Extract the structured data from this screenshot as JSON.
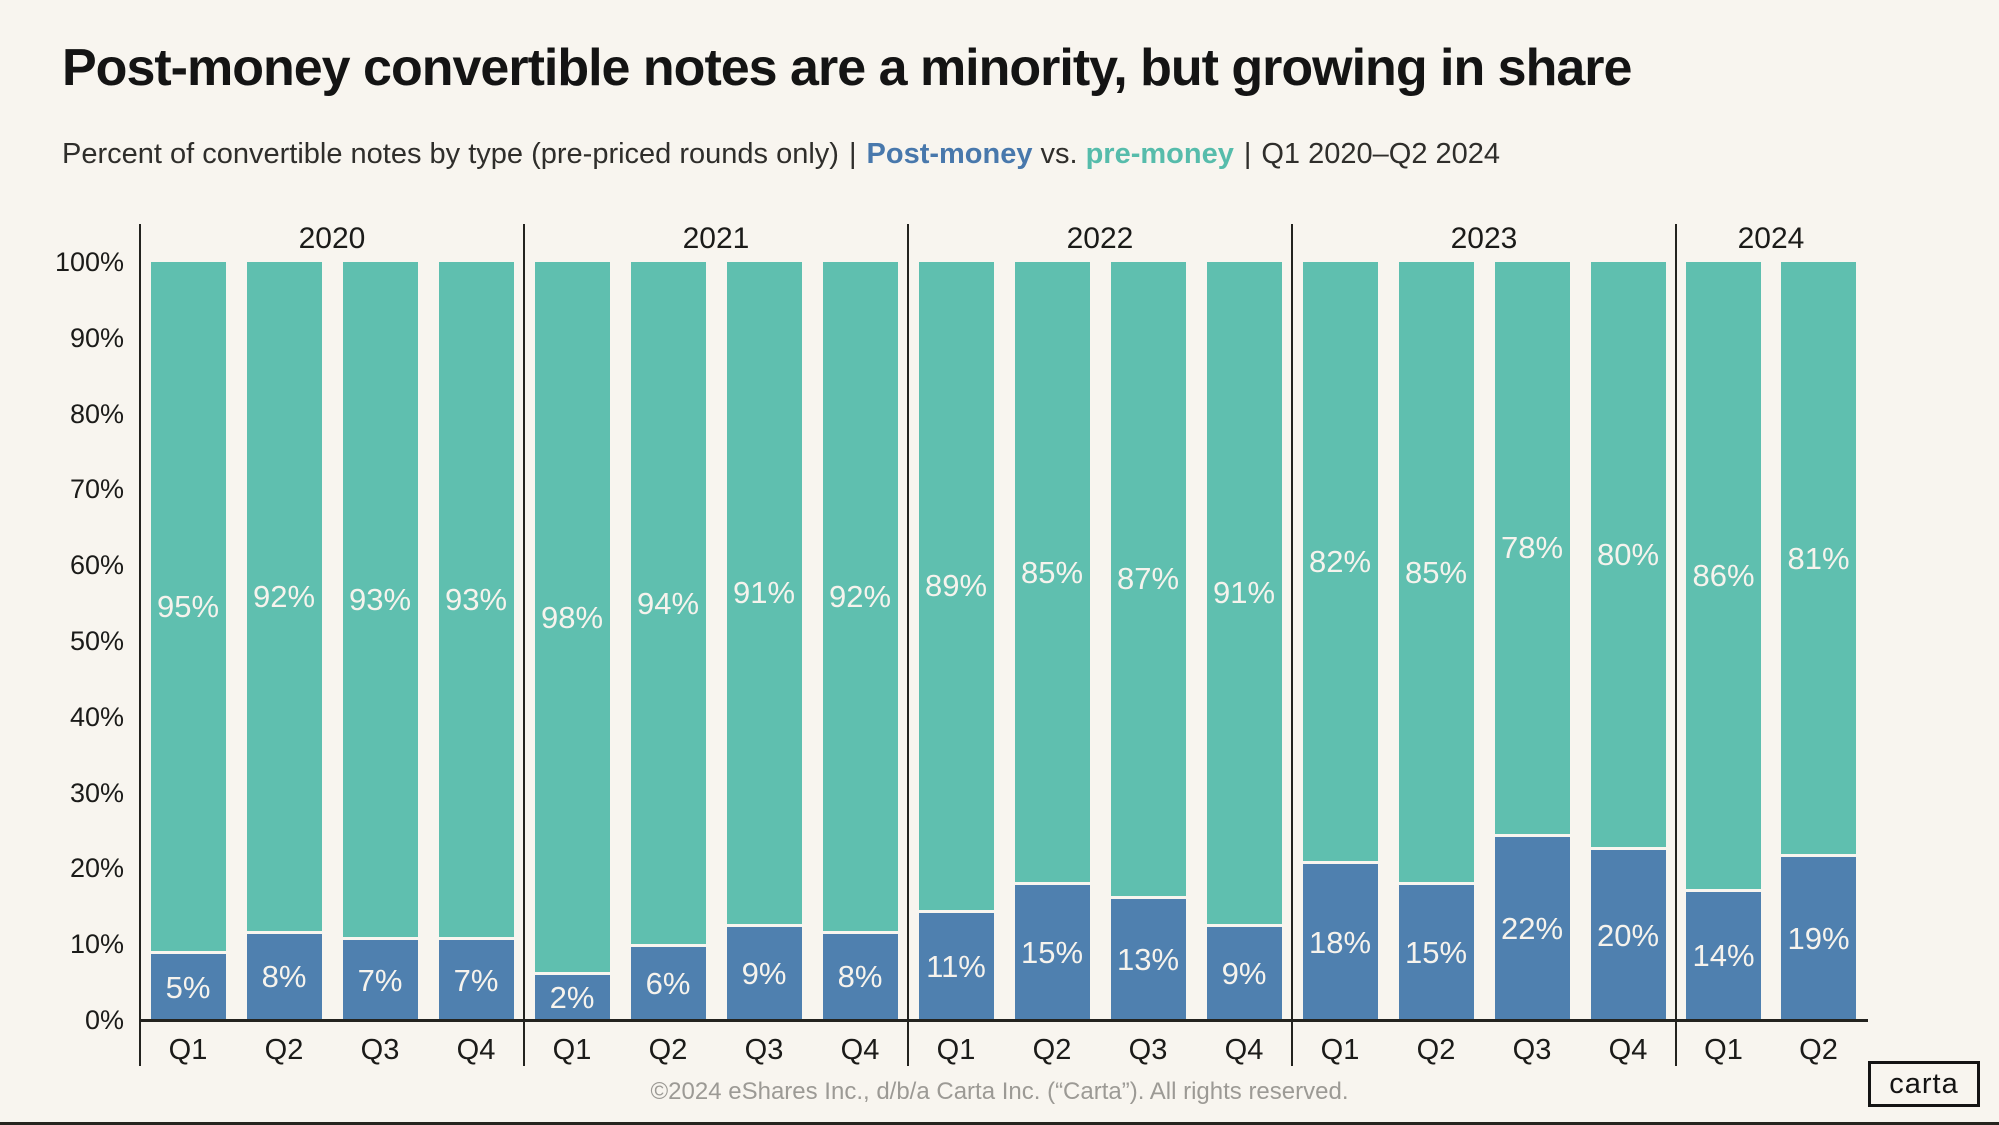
{
  "page": {
    "background": "#F8F5EF"
  },
  "header": {
    "title": "Post-money convertible notes are a minority, but growing in share",
    "subtitle_prefix": "Percent of convertible notes by type (pre-priced rounds only)",
    "separator": "|",
    "post_money_label": "Post-money",
    "vs_label": "vs.",
    "pre_money_label": "pre-money",
    "date_range": "Q1 2020–Q2 2024"
  },
  "colors": {
    "background": "#F8F5EF",
    "pre_money_teal": "#5FBFAF",
    "post_money_blue": "#4F80AF",
    "axis_line": "#23231F",
    "text_dark": "#1B1B19",
    "bar_label_text": "#F6F3ED",
    "footer_gray": "#9C9A95"
  },
  "chart_data": {
    "type": "bar",
    "stacked": true,
    "unit": "%",
    "title": "Post-money convertible notes are a minority, but growing in share",
    "subtitle": "Percent of convertible notes by type (pre-priced rounds only) | Post-money vs. pre-money | Q1 2020–Q2 2024",
    "xlabel": "",
    "ylabel": "",
    "ylim": [
      0,
      100
    ],
    "ytick_labels": [
      "0%",
      "10%",
      "20%",
      "30%",
      "40%",
      "50%",
      "60%",
      "70%",
      "80%",
      "90%",
      "100%"
    ],
    "grid": false,
    "legend_position": "in-subtitle",
    "series_names": {
      "pre_money": "pre-money",
      "post_money": "Post-money"
    },
    "groups": [
      {
        "year": "2020",
        "quarters": [
          "Q1",
          "Q2",
          "Q3",
          "Q4"
        ],
        "pre_money": [
          95,
          92,
          93,
          93
        ],
        "post_money": [
          5,
          8,
          7,
          7
        ]
      },
      {
        "year": "2021",
        "quarters": [
          "Q1",
          "Q2",
          "Q3",
          "Q4"
        ],
        "pre_money": [
          98,
          94,
          91,
          92
        ],
        "post_money": [
          2,
          6,
          9,
          8
        ]
      },
      {
        "year": "2022",
        "quarters": [
          "Q1",
          "Q2",
          "Q3",
          "Q4"
        ],
        "pre_money": [
          89,
          85,
          87,
          91
        ],
        "post_money": [
          11,
          15,
          13,
          9
        ]
      },
      {
        "year": "2023",
        "quarters": [
          "Q1",
          "Q2",
          "Q3",
          "Q4"
        ],
        "pre_money": [
          82,
          85,
          78,
          80
        ],
        "post_money": [
          18,
          15,
          22,
          20
        ]
      },
      {
        "year": "2024",
        "quarters": [
          "Q1",
          "Q2"
        ],
        "pre_money": [
          86,
          81
        ],
        "post_money": [
          14,
          19
        ]
      }
    ]
  },
  "footer": {
    "copyright": "©2024 eShares Inc., d/b/a Carta Inc. (“Carta”). All rights reserved.",
    "logo_text": "carta"
  }
}
